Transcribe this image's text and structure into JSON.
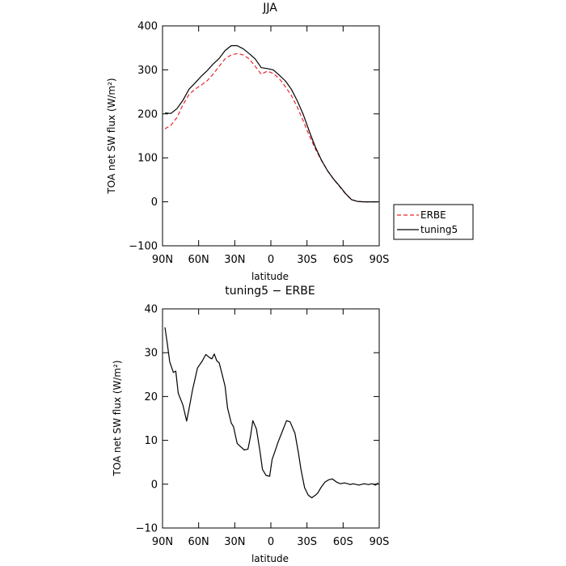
{
  "chart_data": [
    {
      "type": "line",
      "title": "JJA",
      "xlabel": "latitude",
      "ylabel": "TOA net SW flux (W/m²)",
      "xlim": [
        90,
        -90
      ],
      "ylim": [
        -100,
        400
      ],
      "x_ticks": [
        90,
        60,
        30,
        0,
        -30,
        -60,
        -90
      ],
      "x_tick_labels": [
        "90N",
        "60N",
        "30N",
        "0",
        "30S",
        "60S",
        "90S"
      ],
      "y_ticks": [
        -100,
        0,
        100,
        200,
        300,
        400
      ],
      "y_tick_labels": [
        "−100",
        "0",
        "100",
        "200",
        "300",
        "400"
      ],
      "legend_position": "right, outside plot",
      "series": [
        {
          "name": "ERBE",
          "color": "#e8262b",
          "style": "dashed",
          "x": [
            88,
            83,
            78,
            73,
            68,
            63,
            58,
            53,
            48,
            43,
            38,
            33,
            28,
            23,
            18,
            13,
            8,
            3,
            -2,
            -7,
            -12,
            -17,
            -22,
            -27,
            -32,
            -37,
            -42,
            -47,
            -52,
            -57,
            -62,
            -67,
            -72,
            -77,
            -82,
            -87,
            -89
          ],
          "y": [
            166,
            174,
            192,
            221,
            244,
            256,
            265,
            275,
            290,
            308,
            325,
            334,
            337,
            334,
            325,
            308,
            290,
            297,
            292,
            280,
            262,
            242,
            215,
            183,
            150,
            120,
            94,
            71,
            52,
            35,
            18,
            5,
            1,
            0,
            0,
            0,
            0
          ]
        },
        {
          "name": "tuning5",
          "color": "#000000",
          "style": "solid",
          "x": [
            88,
            83,
            78,
            73,
            68,
            63,
            58,
            53,
            48,
            43,
            38,
            33,
            28,
            23,
            18,
            13,
            8,
            3,
            -2,
            -7,
            -12,
            -17,
            -22,
            -27,
            -32,
            -37,
            -42,
            -47,
            -52,
            -57,
            -62,
            -67,
            -72,
            -77,
            -82,
            -87,
            -89
          ],
          "y": [
            202,
            201,
            212,
            231,
            256,
            270,
            285,
            298,
            313,
            326,
            344,
            355,
            355,
            348,
            337,
            325,
            305,
            303,
            300,
            288,
            275,
            256,
            229,
            198,
            160,
            124,
            95,
            71,
            52,
            36,
            19,
            5,
            1,
            0,
            0,
            0,
            0
          ]
        }
      ]
    },
    {
      "type": "line",
      "title": "tuning5 − ERBE",
      "xlabel": "latitude",
      "ylabel": "TOA net SW flux (W/m²)",
      "xlim": [
        90,
        -90
      ],
      "ylim": [
        -10,
        40
      ],
      "x_ticks": [
        90,
        60,
        30,
        0,
        -30,
        -60,
        -90
      ],
      "x_tick_labels": [
        "90N",
        "60N",
        "30N",
        "0",
        "30S",
        "60S",
        "90S"
      ],
      "y_ticks": [
        -10,
        0,
        10,
        20,
        30,
        40
      ],
      "y_tick_labels": [
        "−10",
        "0",
        "10",
        "20",
        "30",
        "40"
      ],
      "series": [
        {
          "color": "#000000",
          "style": "solid",
          "x": [
            88,
            86,
            84,
            81,
            79,
            77,
            73,
            70,
            68,
            65,
            61,
            57,
            54,
            51,
            49,
            47,
            45,
            43,
            41,
            38,
            36,
            33,
            31,
            28,
            25,
            22,
            19,
            17,
            15,
            12,
            9,
            7,
            4,
            1,
            -1,
            -3,
            -6,
            -10,
            -13,
            -16,
            -20,
            -23,
            -25,
            -28,
            -31,
            -34,
            -37,
            -39,
            -42,
            -45,
            -48,
            -51,
            -55,
            -58,
            -61,
            -64,
            -66,
            -68,
            -70,
            -73,
            -76,
            -78,
            -81,
            -84,
            -87,
            -89
          ],
          "y": [
            35.8,
            32.0,
            27.9,
            25.5,
            25.8,
            20.8,
            18.0,
            14.4,
            17.2,
            21.6,
            26.5,
            28.1,
            29.6,
            28.9,
            28.6,
            29.7,
            28.2,
            27.7,
            25.6,
            22.3,
            17.4,
            14.0,
            13.1,
            9.3,
            8.5,
            7.8,
            8.0,
            10.8,
            14.5,
            12.6,
            7.4,
            3.4,
            2.0,
            1.8,
            5.6,
            7.2,
            9.6,
            12.4,
            14.5,
            14.2,
            11.6,
            7.0,
            3.4,
            -0.8,
            -2.5,
            -3.1,
            -2.5,
            -2.0,
            -0.6,
            0.5,
            1.0,
            1.2,
            0.4,
            0.1,
            0.3,
            0.1,
            -0.1,
            0.1,
            0.0,
            -0.2,
            0.0,
            0.1,
            -0.1,
            0.1,
            -0.2,
            0.3
          ]
        }
      ]
    }
  ]
}
